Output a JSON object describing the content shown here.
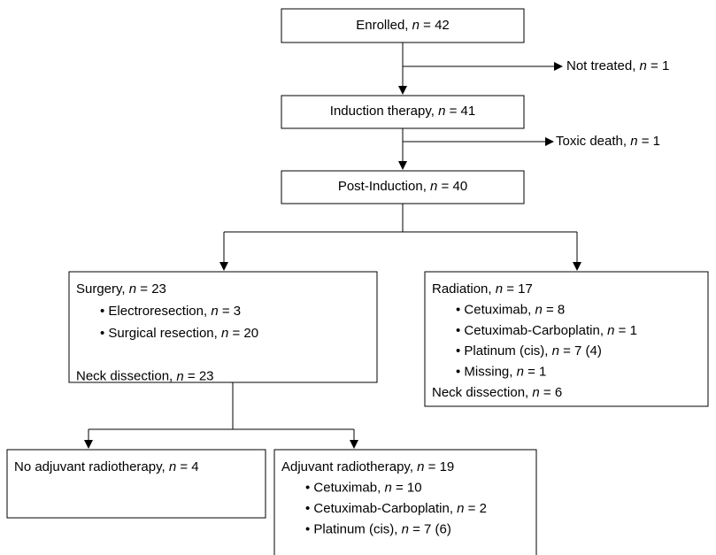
{
  "nodes": [
    {
      "lines": [
        "Enrolled, n = 42"
      ]
    },
    {
      "lines": [
        "Induction therapy, n = 41"
      ]
    },
    {
      "lines": [
        "Post-Induction, n = 40"
      ]
    },
    {
      "lines": [
        "Surgery, n = 23",
        "• Electroresection, n = 3",
        "• Surgical resection, n = 20",
        "Neck dissection, n = 23"
      ]
    },
    {
      "lines": [
        "Radiation, n = 17",
        "• Cetuximab, n = 8",
        "• Cetuximab-Carboplatin, n = 1",
        "• Platinum (cis), n = 7 (4)",
        "• Missing, n = 1",
        "Neck dissection, n = 6"
      ]
    },
    {
      "lines": [
        "No adjuvant radiotherapy, n = 4"
      ]
    },
    {
      "lines": [
        "Adjuvant radiotherapy, n = 19",
        "• Cetuximab, n = 10",
        "• Cetuximab-Carboplatin, n = 2",
        "• Platinum (cis), n = 7 (6)"
      ]
    }
  ],
  "exits": [
    {
      "label": "Not treated, n = 1"
    },
    {
      "label": "Toxic death, n = 1"
    }
  ]
}
